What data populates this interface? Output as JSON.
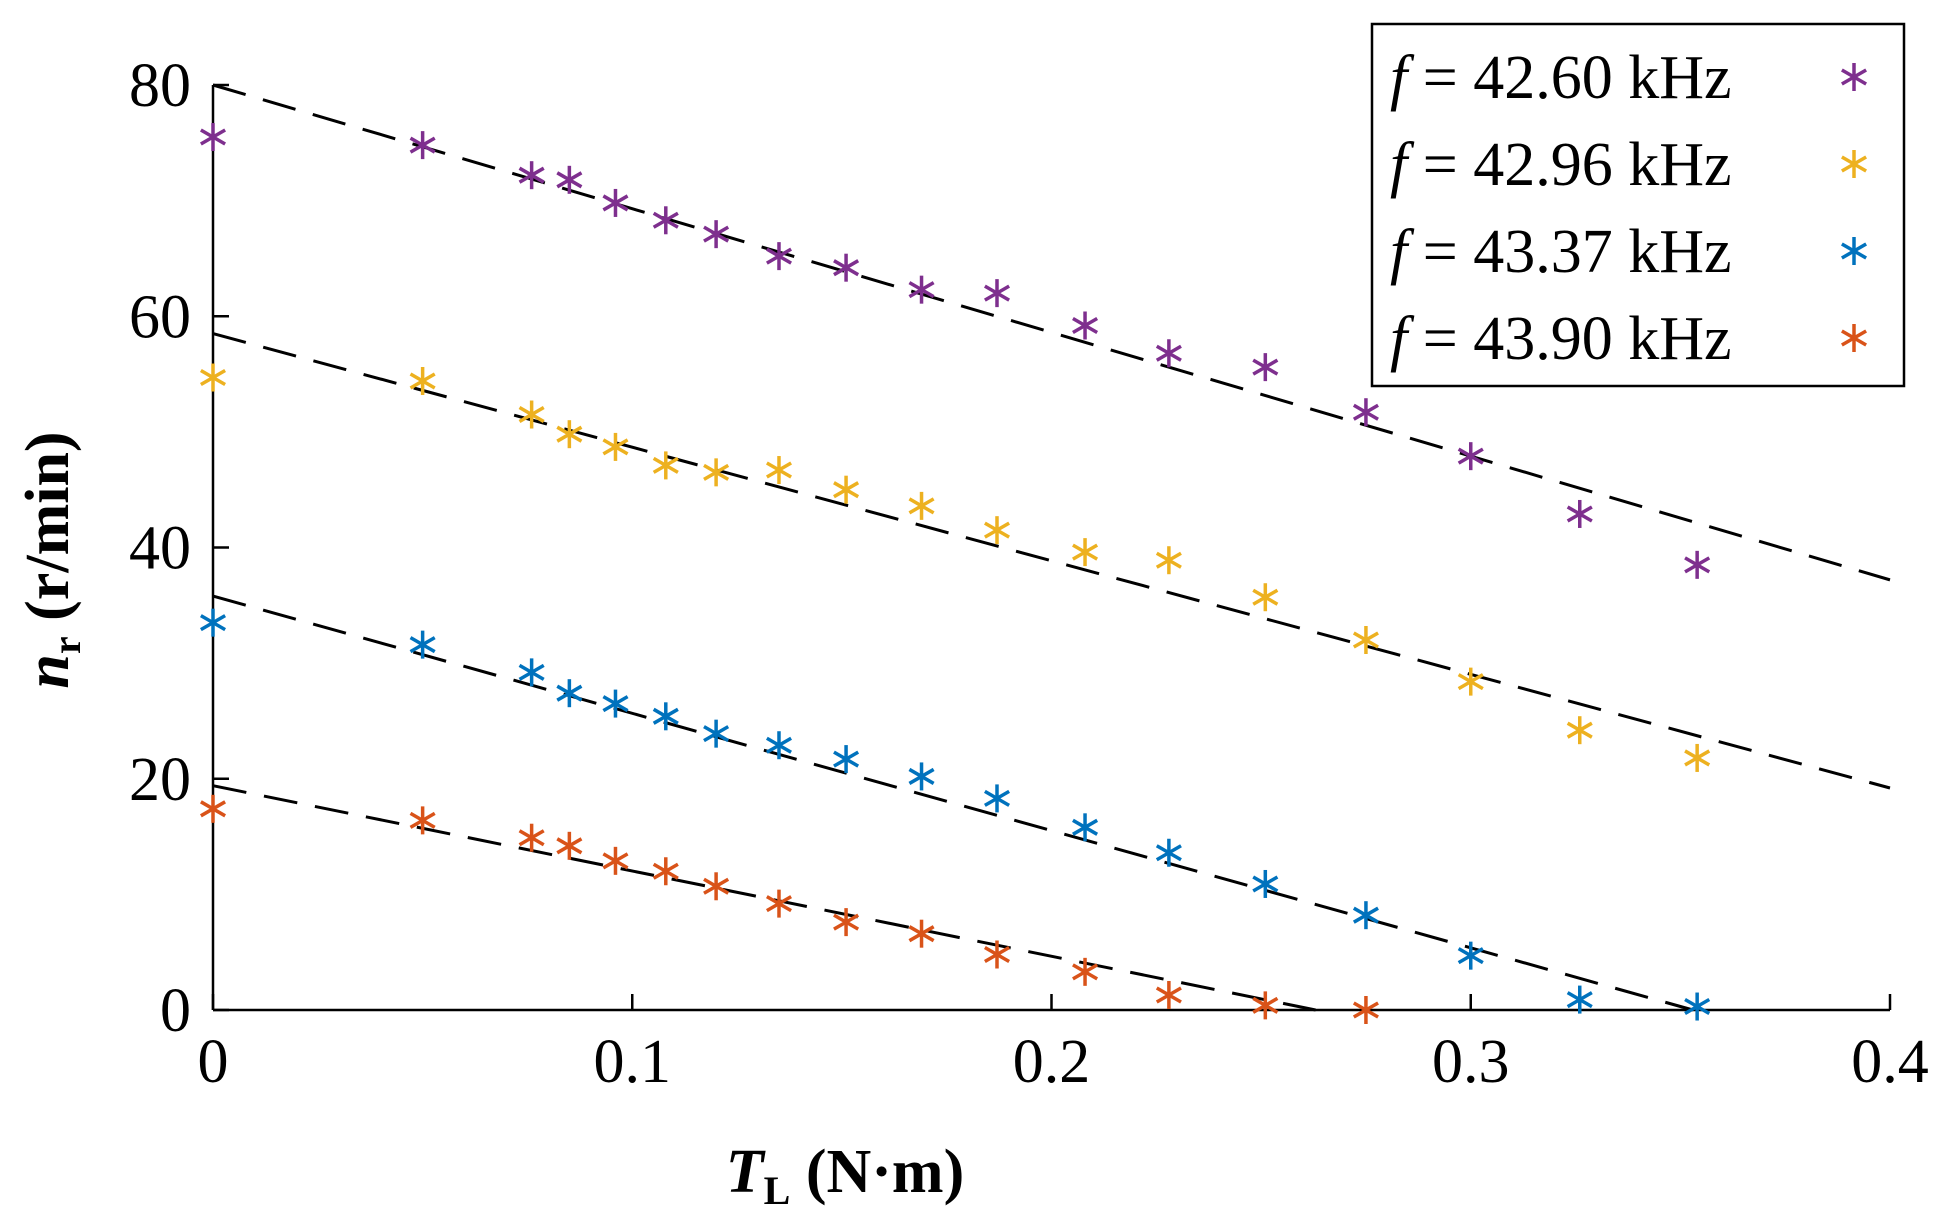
{
  "chart_data": {
    "type": "scatter",
    "title": "",
    "xlabel": {
      "main": "T",
      "sub": "L",
      "unit": " (N·m)"
    },
    "ylabel": {
      "main": "n",
      "sub": "r",
      "unit": " (r/min)"
    },
    "xlim": [
      0,
      0.4
    ],
    "ylim": [
      0,
      80
    ],
    "xticks": [
      0,
      0.1,
      0.2,
      0.3,
      0.4
    ],
    "xtick_labels": [
      "0",
      "0.1",
      "0.2",
      "0.3",
      "0.4"
    ],
    "yticks": [
      0,
      20,
      40,
      60,
      80
    ],
    "ytick_labels": [
      "0",
      "20",
      "40",
      "60",
      "80"
    ],
    "grid": false,
    "legend_position": "top-right",
    "series": [
      {
        "name": "f = 42.60 kHz",
        "legend_var": "f",
        "legend_rest": " = 42.60 kHz",
        "color": "#7E2F8E",
        "x": [
          0,
          0.05,
          0.076,
          0.085,
          0.096,
          0.108,
          0.12,
          0.135,
          0.151,
          0.169,
          0.187,
          0.208,
          0.228,
          0.251,
          0.275,
          0.3,
          0.326,
          0.354
        ],
        "y": [
          75.5,
          74.8,
          72.2,
          71.8,
          69.8,
          68.3,
          67.1,
          65.2,
          64.2,
          62.3,
          62.0,
          59.2,
          56.8,
          55.6,
          51.7,
          47.9,
          42.9,
          38.5
        ],
        "fit": {
          "x": [
            0,
            0.4
          ],
          "y": [
            80,
            37.2
          ]
        }
      },
      {
        "name": "f = 42.96 kHz",
        "legend_var": "f",
        "legend_rest": " = 42.96 kHz",
        "color": "#EDB120",
        "x": [
          0,
          0.05,
          0.076,
          0.085,
          0.096,
          0.108,
          0.12,
          0.135,
          0.151,
          0.169,
          0.187,
          0.208,
          0.228,
          0.251,
          0.275,
          0.3,
          0.326,
          0.354
        ],
        "y": [
          54.7,
          54.4,
          51.5,
          49.8,
          48.7,
          47.1,
          46.5,
          46.7,
          45.0,
          43.6,
          41.5,
          39.6,
          38.9,
          35.7,
          32.0,
          28.4,
          24.2,
          21.8
        ],
        "fit": {
          "x": [
            0,
            0.4
          ],
          "y": [
            58.5,
            19.2
          ]
        }
      },
      {
        "name": "f = 43.37 kHz",
        "legend_var": "f",
        "legend_rest": " = 43.37 kHz",
        "color": "#0072BD",
        "x": [
          0,
          0.05,
          0.076,
          0.085,
          0.096,
          0.108,
          0.12,
          0.135,
          0.151,
          0.169,
          0.187,
          0.208,
          0.228,
          0.251,
          0.275,
          0.3,
          0.326,
          0.354
        ],
        "y": [
          33.5,
          31.6,
          29.2,
          27.4,
          26.5,
          25.4,
          23.9,
          22.9,
          21.7,
          20.2,
          18.3,
          15.8,
          13.6,
          10.9,
          8.2,
          4.7,
          0.9,
          0.3
        ],
        "fit": {
          "x": [
            0,
            0.353
          ],
          "y": [
            35.8,
            0
          ]
        }
      },
      {
        "name": "f = 43.90 kHz",
        "legend_var": "f",
        "legend_rest": " = 43.90 kHz",
        "color": "#D95319",
        "x": [
          0,
          0.05,
          0.076,
          0.085,
          0.096,
          0.108,
          0.12,
          0.135,
          0.151,
          0.169,
          0.187,
          0.208,
          0.228,
          0.251,
          0.275
        ],
        "y": [
          17.4,
          16.4,
          14.9,
          14.2,
          12.9,
          12.0,
          10.7,
          9.2,
          7.6,
          6.6,
          4.8,
          3.3,
          1.3,
          0.4,
          0.0
        ],
        "fit": {
          "x": [
            0,
            0.263
          ],
          "y": [
            19.4,
            0
          ]
        }
      }
    ]
  }
}
